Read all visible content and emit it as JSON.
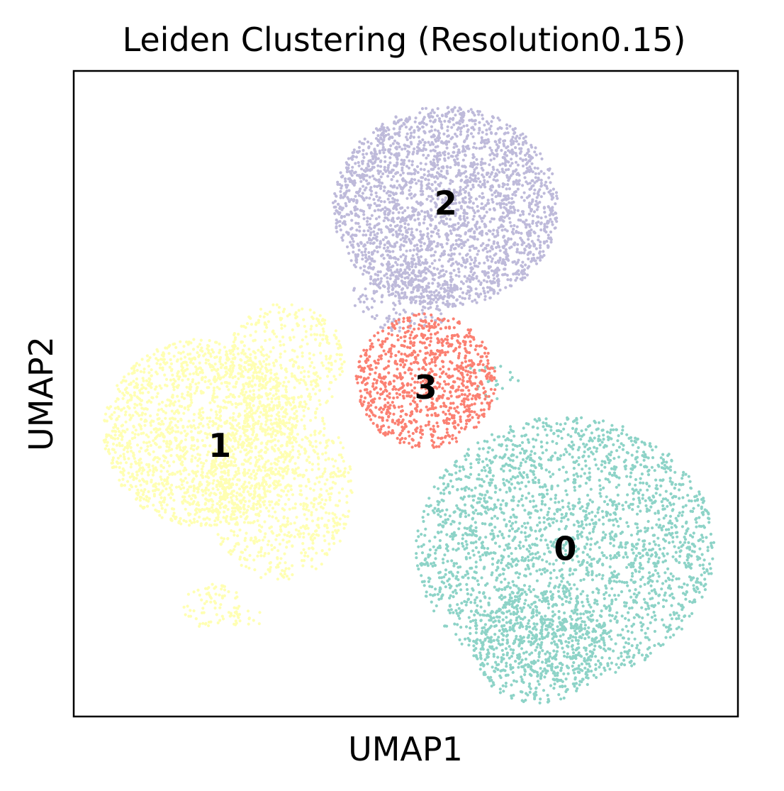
{
  "chart_data": {
    "type": "scatter",
    "title": "Leiden Clustering (Resolution0.15)",
    "xlabel": "UMAP1",
    "ylabel": "UMAP2",
    "xlim": [
      0,
      10
    ],
    "ylim": [
      0,
      10
    ],
    "grid": false,
    "ticks": false,
    "legend": "on data",
    "clusters": [
      {
        "label": "0",
        "color": "#8dd3c7",
        "label_pos": [
          7.4,
          2.6
        ],
        "blobs": [
          {
            "center": [
              7.4,
              2.6
            ],
            "rx": 2.25,
            "ry": 2.05,
            "n": 2600
          },
          {
            "center": [
              7.0,
              1.1
            ],
            "rx": 1.0,
            "ry": 0.9,
            "n": 450
          },
          {
            "center": [
              6.3,
              5.2
            ],
            "rx": 0.45,
            "ry": 0.3,
            "n": 25
          }
        ]
      },
      {
        "label": "1",
        "color": "#ffffb3",
        "label_pos": [
          2.2,
          4.2
        ],
        "blobs": [
          {
            "center": [
              1.9,
              4.4
            ],
            "rx": 1.45,
            "ry": 1.45,
            "n": 1700
          },
          {
            "center": [
              3.1,
              3.5
            ],
            "rx": 1.1,
            "ry": 1.4,
            "n": 800
          },
          {
            "center": [
              3.2,
              5.5
            ],
            "rx": 0.9,
            "ry": 0.9,
            "n": 400
          },
          {
            "center": [
              2.1,
              1.7
            ],
            "rx": 0.45,
            "ry": 0.35,
            "n": 70
          },
          {
            "center": [
              2.6,
              1.55
            ],
            "rx": 0.25,
            "ry": 0.2,
            "n": 20
          }
        ]
      },
      {
        "label": "2",
        "color": "#bebada",
        "label_pos": [
          5.6,
          7.95
        ],
        "blobs": [
          {
            "center": [
              5.6,
              7.9
            ],
            "rx": 1.7,
            "ry": 1.55,
            "n": 2600
          },
          {
            "center": [
              5.0,
              6.5
            ],
            "rx": 0.8,
            "ry": 0.55,
            "n": 180
          }
        ]
      },
      {
        "label": "3",
        "color": "#fb8072",
        "label_pos": [
          5.3,
          5.1
        ],
        "blobs": [
          {
            "center": [
              5.3,
              5.2
            ],
            "rx": 1.05,
            "ry": 1.05,
            "n": 950
          }
        ]
      }
    ]
  }
}
